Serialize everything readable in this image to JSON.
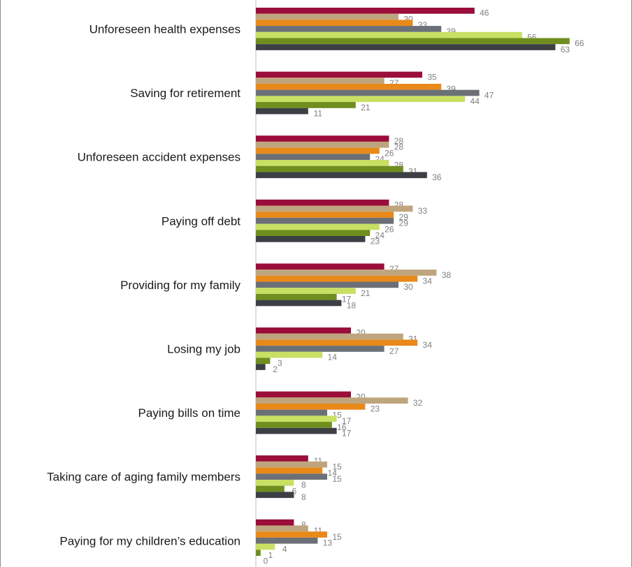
{
  "chart_data": {
    "type": "bar",
    "orientation": "horizontal",
    "categories": [
      "Unforeseen health expenses",
      "Saving for retirement",
      "Unforeseen accident expenses",
      "Paying off debt",
      "Providing for my family",
      "Losing my job",
      "Paying bills on time",
      "Taking care of aging family members",
      "Paying for my children’s education"
    ],
    "series": [
      {
        "color": "#9b0d3a",
        "values": [
          46,
          35,
          28,
          28,
          27,
          20,
          20,
          11,
          8
        ]
      },
      {
        "color": "#bfa57d",
        "values": [
          30,
          27,
          28,
          33,
          38,
          31,
          32,
          15,
          11
        ]
      },
      {
        "color": "#e8891a",
        "values": [
          33,
          39,
          26,
          29,
          34,
          34,
          23,
          14,
          15
        ]
      },
      {
        "color": "#6b7077",
        "values": [
          39,
          47,
          24,
          29,
          30,
          27,
          15,
          15,
          13
        ]
      },
      {
        "color": "#c8e063",
        "values": [
          56,
          44,
          28,
          26,
          21,
          14,
          17,
          8,
          4
        ]
      },
      {
        "color": "#6f8e1f",
        "values": [
          66,
          21,
          31,
          24,
          17,
          3,
          16,
          6,
          1
        ]
      },
      {
        "color": "#3c3f44",
        "values": [
          63,
          11,
          36,
          23,
          18,
          2,
          17,
          8,
          0
        ]
      }
    ],
    "xlim": [
      0,
      80
    ],
    "grid": false,
    "legend": "none",
    "data_labels": true
  }
}
